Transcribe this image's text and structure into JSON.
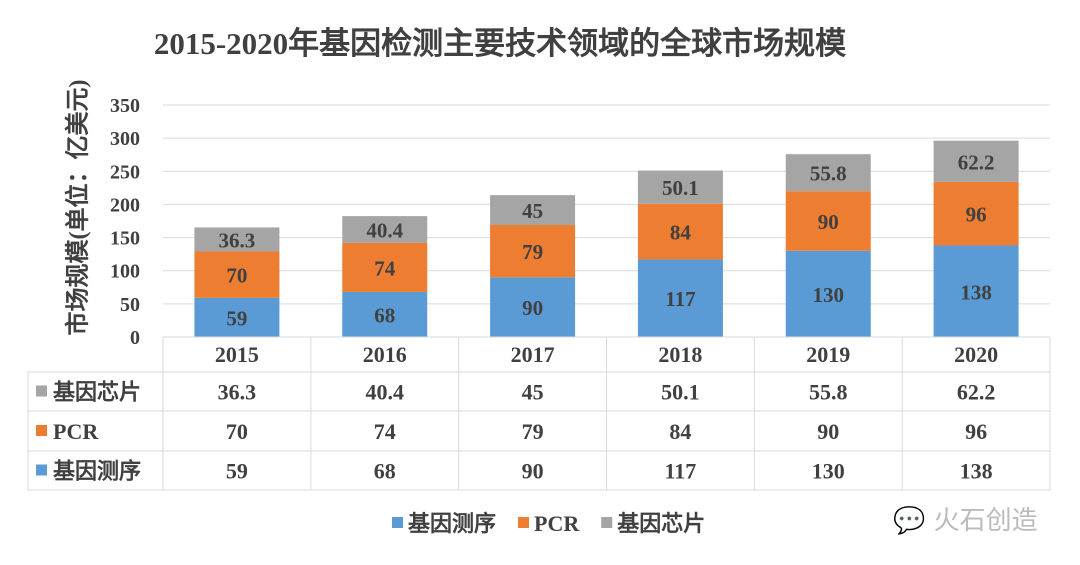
{
  "chart_data": {
    "type": "bar",
    "stacked": true,
    "title": "2015-2020年基因检测主要技术领域的全球市场规模",
    "xlabel": "",
    "ylabel": "市场规模(单位：亿美元)",
    "ylim": [
      0,
      350
    ],
    "yticks": [
      0,
      50,
      100,
      150,
      200,
      250,
      300,
      350
    ],
    "grid": true,
    "legend_placement": "bottom",
    "categories": [
      "2015",
      "2016",
      "2017",
      "2018",
      "2019",
      "2020"
    ],
    "series": [
      {
        "name": "基因测序",
        "color": "#5B9BD5",
        "values": [
          59,
          68,
          90,
          117,
          130,
          138
        ]
      },
      {
        "name": "PCR",
        "color": "#ED7D31",
        "values": [
          70,
          74,
          79,
          84,
          90,
          96
        ]
      },
      {
        "name": "基因芯片",
        "color": "#A5A5A5",
        "values": [
          36.3,
          40.4,
          45,
          50.1,
          55.8,
          62.2
        ]
      }
    ],
    "data_table": true
  },
  "watermark": "火石创造"
}
